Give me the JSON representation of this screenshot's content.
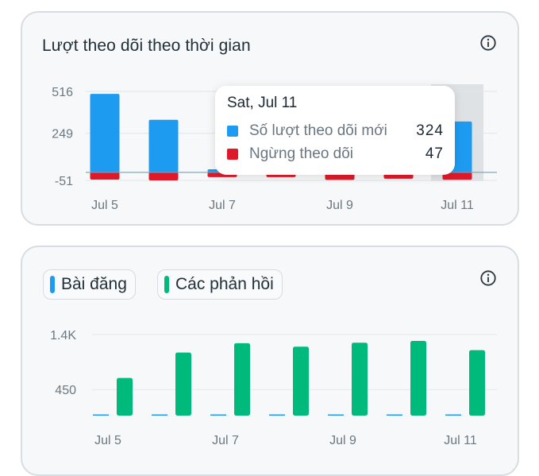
{
  "card1": {
    "title": "Lượt theo dõi theo thời gian",
    "info_icon": "info-circle-icon",
    "tooltip": {
      "title": "Sat, Jul 11",
      "rows": [
        {
          "label": "Số lượt theo dõi mới",
          "value": "324",
          "color": "#1d9bf0"
        },
        {
          "label": "Ngừng theo dõi",
          "value": "47",
          "color": "#e0192a"
        }
      ]
    }
  },
  "card2": {
    "info_icon": "info-circle-icon",
    "legend": [
      {
        "label": "Bài đăng",
        "color": "#1d9bf0"
      },
      {
        "label": "Các phản hồi",
        "color": "#00ba7c"
      }
    ]
  },
  "chart_data": [
    {
      "type": "bar",
      "title": "Lượt theo dõi theo thời gian",
      "categories": [
        "Jul 5",
        "Jul 6",
        "Jul 7",
        "Jul 8",
        "Jul 9",
        "Jul 10",
        "Jul 11"
      ],
      "x_tick_labels": [
        "Jul 5",
        "Jul 7",
        "Jul 9",
        "Jul 11"
      ],
      "y_tick_labels": [
        "516",
        "249",
        "-51"
      ],
      "ylim": [
        -51,
        516
      ],
      "grid": true,
      "highlighted_category": "Jul 11",
      "series": [
        {
          "name": "Số lượt theo dõi mới",
          "color": "#1d9bf0",
          "values": [
            500,
            335,
            20,
            20,
            20,
            20,
            324
          ]
        },
        {
          "name": "Ngừng theo dõi",
          "color": "#e0192a",
          "values": [
            -46,
            -51,
            -30,
            -30,
            -48,
            -40,
            -47
          ]
        }
      ]
    },
    {
      "type": "bar",
      "categories": [
        "Jul 5",
        "Jul 6",
        "Jul 7",
        "Jul 8",
        "Jul 9",
        "Jul 10",
        "Jul 11"
      ],
      "x_tick_labels": [
        "Jul 5",
        "Jul 7",
        "Jul 9",
        "Jul 11"
      ],
      "y_tick_labels": [
        "1.4K",
        "450"
      ],
      "ylim": [
        0,
        1400
      ],
      "grid": true,
      "series": [
        {
          "name": "Bài đăng",
          "color": "#1d9bf0",
          "values": [
            3,
            3,
            3,
            3,
            3,
            3,
            3
          ]
        },
        {
          "name": "Các phản hồi",
          "color": "#00ba7c",
          "values": [
            650,
            1090,
            1250,
            1190,
            1260,
            1290,
            1130
          ]
        }
      ]
    }
  ]
}
